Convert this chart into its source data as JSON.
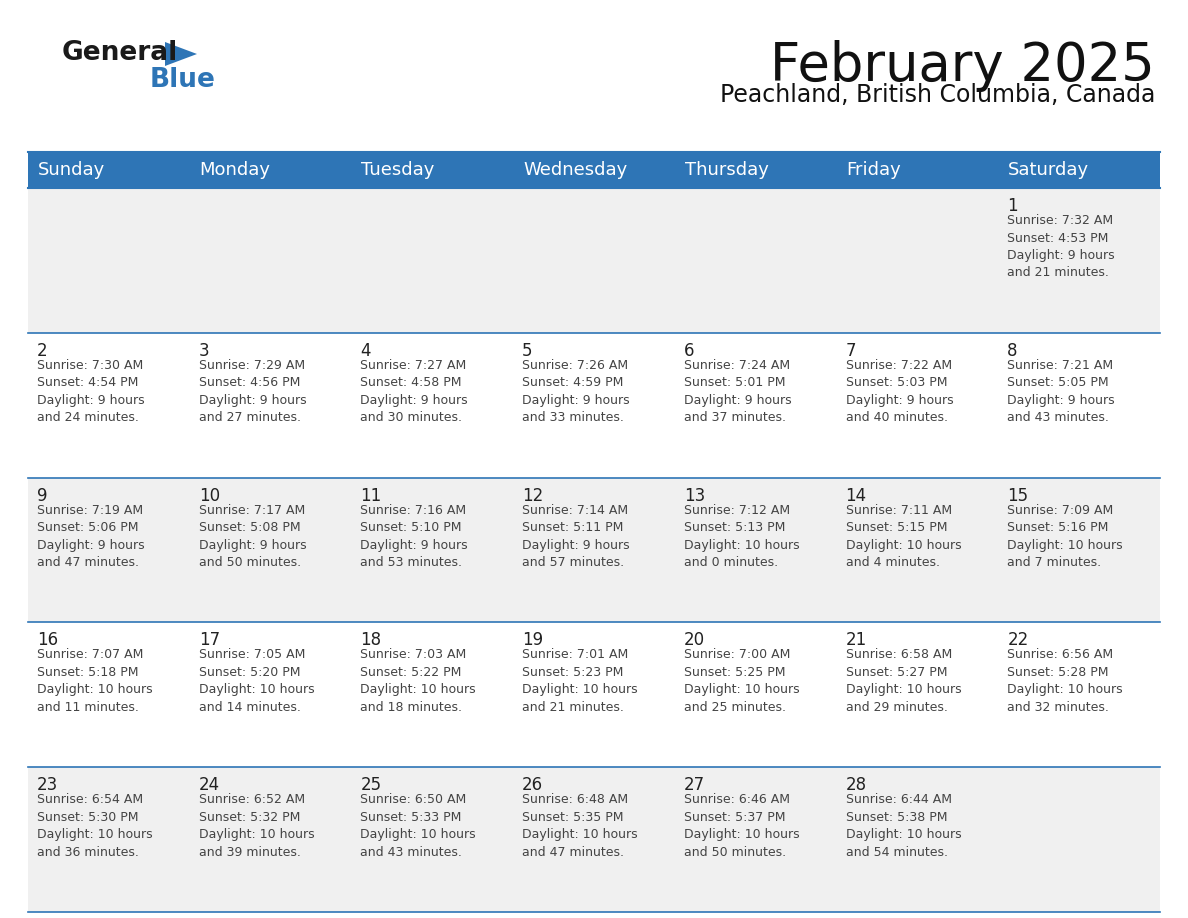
{
  "title": "February 2025",
  "subtitle": "Peachland, British Columbia, Canada",
  "header_bg": "#2e75b6",
  "header_text_color": "#ffffff",
  "day_names": [
    "Sunday",
    "Monday",
    "Tuesday",
    "Wednesday",
    "Thursday",
    "Friday",
    "Saturday"
  ],
  "cell_bg_week1": "#f0f0f0",
  "cell_bg_week2": "#ffffff",
  "cell_bg_week3": "#f0f0f0",
  "cell_bg_week4": "#ffffff",
  "cell_bg_week5": "#f0f0f0",
  "border_color": "#2e75b6",
  "text_color": "#444444",
  "day_num_color": "#222222",
  "logo_general_color": "#1a1a1a",
  "logo_blue_color": "#2e75b6",
  "title_fontsize": 38,
  "subtitle_fontsize": 17,
  "header_fontsize": 13,
  "day_num_fontsize": 12,
  "cell_text_fontsize": 9,
  "weeks": [
    [
      {
        "day": null,
        "text": ""
      },
      {
        "day": null,
        "text": ""
      },
      {
        "day": null,
        "text": ""
      },
      {
        "day": null,
        "text": ""
      },
      {
        "day": null,
        "text": ""
      },
      {
        "day": null,
        "text": ""
      },
      {
        "day": 1,
        "text": "Sunrise: 7:32 AM\nSunset: 4:53 PM\nDaylight: 9 hours\nand 21 minutes."
      }
    ],
    [
      {
        "day": 2,
        "text": "Sunrise: 7:30 AM\nSunset: 4:54 PM\nDaylight: 9 hours\nand 24 minutes."
      },
      {
        "day": 3,
        "text": "Sunrise: 7:29 AM\nSunset: 4:56 PM\nDaylight: 9 hours\nand 27 minutes."
      },
      {
        "day": 4,
        "text": "Sunrise: 7:27 AM\nSunset: 4:58 PM\nDaylight: 9 hours\nand 30 minutes."
      },
      {
        "day": 5,
        "text": "Sunrise: 7:26 AM\nSunset: 4:59 PM\nDaylight: 9 hours\nand 33 minutes."
      },
      {
        "day": 6,
        "text": "Sunrise: 7:24 AM\nSunset: 5:01 PM\nDaylight: 9 hours\nand 37 minutes."
      },
      {
        "day": 7,
        "text": "Sunrise: 7:22 AM\nSunset: 5:03 PM\nDaylight: 9 hours\nand 40 minutes."
      },
      {
        "day": 8,
        "text": "Sunrise: 7:21 AM\nSunset: 5:05 PM\nDaylight: 9 hours\nand 43 minutes."
      }
    ],
    [
      {
        "day": 9,
        "text": "Sunrise: 7:19 AM\nSunset: 5:06 PM\nDaylight: 9 hours\nand 47 minutes."
      },
      {
        "day": 10,
        "text": "Sunrise: 7:17 AM\nSunset: 5:08 PM\nDaylight: 9 hours\nand 50 minutes."
      },
      {
        "day": 11,
        "text": "Sunrise: 7:16 AM\nSunset: 5:10 PM\nDaylight: 9 hours\nand 53 minutes."
      },
      {
        "day": 12,
        "text": "Sunrise: 7:14 AM\nSunset: 5:11 PM\nDaylight: 9 hours\nand 57 minutes."
      },
      {
        "day": 13,
        "text": "Sunrise: 7:12 AM\nSunset: 5:13 PM\nDaylight: 10 hours\nand 0 minutes."
      },
      {
        "day": 14,
        "text": "Sunrise: 7:11 AM\nSunset: 5:15 PM\nDaylight: 10 hours\nand 4 minutes."
      },
      {
        "day": 15,
        "text": "Sunrise: 7:09 AM\nSunset: 5:16 PM\nDaylight: 10 hours\nand 7 minutes."
      }
    ],
    [
      {
        "day": 16,
        "text": "Sunrise: 7:07 AM\nSunset: 5:18 PM\nDaylight: 10 hours\nand 11 minutes."
      },
      {
        "day": 17,
        "text": "Sunrise: 7:05 AM\nSunset: 5:20 PM\nDaylight: 10 hours\nand 14 minutes."
      },
      {
        "day": 18,
        "text": "Sunrise: 7:03 AM\nSunset: 5:22 PM\nDaylight: 10 hours\nand 18 minutes."
      },
      {
        "day": 19,
        "text": "Sunrise: 7:01 AM\nSunset: 5:23 PM\nDaylight: 10 hours\nand 21 minutes."
      },
      {
        "day": 20,
        "text": "Sunrise: 7:00 AM\nSunset: 5:25 PM\nDaylight: 10 hours\nand 25 minutes."
      },
      {
        "day": 21,
        "text": "Sunrise: 6:58 AM\nSunset: 5:27 PM\nDaylight: 10 hours\nand 29 minutes."
      },
      {
        "day": 22,
        "text": "Sunrise: 6:56 AM\nSunset: 5:28 PM\nDaylight: 10 hours\nand 32 minutes."
      }
    ],
    [
      {
        "day": 23,
        "text": "Sunrise: 6:54 AM\nSunset: 5:30 PM\nDaylight: 10 hours\nand 36 minutes."
      },
      {
        "day": 24,
        "text": "Sunrise: 6:52 AM\nSunset: 5:32 PM\nDaylight: 10 hours\nand 39 minutes."
      },
      {
        "day": 25,
        "text": "Sunrise: 6:50 AM\nSunset: 5:33 PM\nDaylight: 10 hours\nand 43 minutes."
      },
      {
        "day": 26,
        "text": "Sunrise: 6:48 AM\nSunset: 5:35 PM\nDaylight: 10 hours\nand 47 minutes."
      },
      {
        "day": 27,
        "text": "Sunrise: 6:46 AM\nSunset: 5:37 PM\nDaylight: 10 hours\nand 50 minutes."
      },
      {
        "day": 28,
        "text": "Sunrise: 6:44 AM\nSunset: 5:38 PM\nDaylight: 10 hours\nand 54 minutes."
      },
      {
        "day": null,
        "text": ""
      }
    ]
  ]
}
